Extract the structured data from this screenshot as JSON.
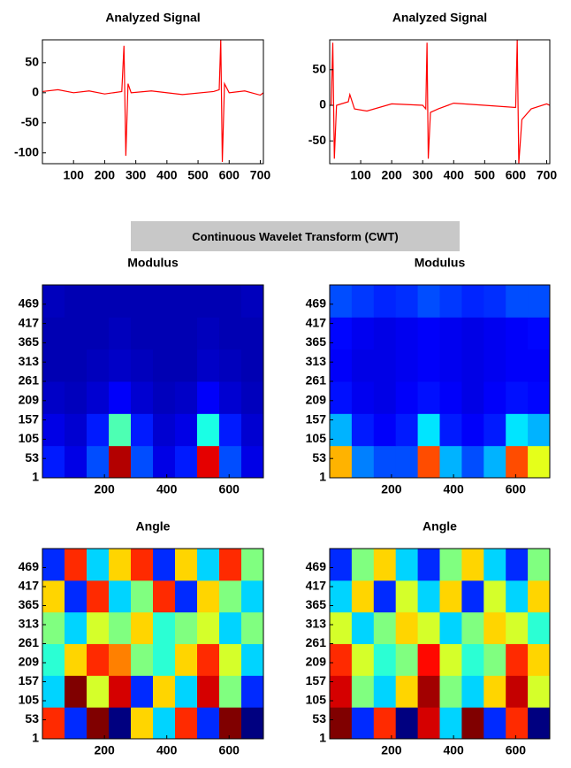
{
  "banner": "Continuous Wavelet Transform (CWT)",
  "chart_data": [
    {
      "type": "line",
      "title": "Analyzed Signal",
      "color": "#ff0000",
      "x": [
        0,
        50,
        100,
        150,
        200,
        255,
        262,
        268,
        275,
        285,
        350,
        450,
        550,
        568,
        573,
        578,
        585,
        600,
        650,
        700,
        710
      ],
      "values": [
        2,
        5,
        0,
        3,
        -2,
        2,
        78,
        -105,
        15,
        0,
        3,
        -3,
        2,
        5,
        88,
        -115,
        15,
        0,
        3,
        -4,
        0
      ],
      "xlim": [
        0,
        710
      ],
      "xticks": [
        100,
        200,
        300,
        400,
        500,
        600,
        700
      ],
      "ylim": [
        -118,
        88
      ],
      "yticks": [
        -100,
        -50,
        0,
        50
      ]
    },
    {
      "type": "line",
      "title": "Analyzed Signal",
      "color": "#ff0000",
      "x": [
        5,
        10,
        15,
        22,
        60,
        65,
        80,
        120,
        200,
        300,
        310,
        314,
        318,
        325,
        350,
        400,
        500,
        600,
        605,
        610,
        620,
        650,
        700,
        710
      ],
      "values": [
        0,
        88,
        -75,
        0,
        5,
        15,
        -5,
        -8,
        2,
        0,
        -5,
        88,
        -75,
        -10,
        -5,
        3,
        0,
        -3,
        92,
        -82,
        -20,
        -5,
        2,
        0
      ],
      "xlim": [
        0,
        710
      ],
      "xticks": [
        100,
        200,
        300,
        400,
        500,
        600,
        700
      ],
      "ylim": [
        -82,
        92
      ],
      "yticks": [
        -50,
        0,
        50
      ]
    },
    {
      "type": "heatmap",
      "title": "Modulus",
      "clim": [
        0,
        1
      ],
      "xlim": [
        1,
        710
      ],
      "xticks": [
        200,
        400,
        600
      ],
      "ylim": [
        1,
        521
      ],
      "yticks": [
        1,
        53,
        105,
        157,
        209,
        261,
        313,
        365,
        417,
        469
      ],
      "values": [
        [
          0.15,
          0.1,
          0.2,
          0.95,
          0.2,
          0.1,
          0.15,
          0.9,
          0.2,
          0.1
        ],
        [
          0.1,
          0.08,
          0.15,
          0.45,
          0.15,
          0.08,
          0.1,
          0.4,
          0.15,
          0.08
        ],
        [
          0.07,
          0.06,
          0.08,
          0.12,
          0.08,
          0.06,
          0.07,
          0.12,
          0.08,
          0.06
        ],
        [
          0.05,
          0.05,
          0.06,
          0.07,
          0.06,
          0.05,
          0.05,
          0.07,
          0.06,
          0.05
        ],
        [
          0.05,
          0.05,
          0.05,
          0.06,
          0.05,
          0.05,
          0.05,
          0.06,
          0.05,
          0.05
        ],
        [
          0.06,
          0.05,
          0.05,
          0.05,
          0.05,
          0.05,
          0.05,
          0.05,
          0.05,
          0.06
        ]
      ]
    },
    {
      "type": "heatmap",
      "title": "Modulus",
      "clim": [
        0,
        1
      ],
      "xlim": [
        1,
        710
      ],
      "xticks": [
        200,
        400,
        600
      ],
      "ylim": [
        1,
        521
      ],
      "yticks": [
        1,
        53,
        105,
        157,
        209,
        261,
        313,
        365,
        417,
        469
      ],
      "values": [
        [
          0.7,
          0.25,
          0.2,
          0.2,
          0.8,
          0.3,
          0.2,
          0.3,
          0.8,
          0.6
        ],
        [
          0.3,
          0.15,
          0.12,
          0.15,
          0.35,
          0.15,
          0.12,
          0.15,
          0.35,
          0.3
        ],
        [
          0.14,
          0.11,
          0.1,
          0.12,
          0.14,
          0.12,
          0.1,
          0.12,
          0.14,
          0.13
        ],
        [
          0.12,
          0.1,
          0.1,
          0.11,
          0.12,
          0.11,
          0.1,
          0.11,
          0.12,
          0.12
        ],
        [
          0.13,
          0.11,
          0.1,
          0.11,
          0.12,
          0.11,
          0.1,
          0.11,
          0.12,
          0.13
        ],
        [
          0.2,
          0.18,
          0.16,
          0.17,
          0.2,
          0.18,
          0.16,
          0.17,
          0.2,
          0.2
        ]
      ]
    },
    {
      "type": "heatmap",
      "title": "Angle",
      "clim": [
        -3,
        3
      ],
      "xlim": [
        1,
        710
      ],
      "xticks": [
        200,
        400,
        600
      ],
      "ylim": [
        1,
        521
      ],
      "yticks": [
        1,
        53,
        105,
        157,
        209,
        261,
        313,
        365,
        417,
        469
      ],
      "values": [
        [
          2,
          -2,
          3,
          -3,
          1,
          -1,
          2,
          -2,
          3,
          -3
        ],
        [
          -1,
          3,
          0.5,
          2.5,
          -2,
          1,
          -1,
          2.5,
          0,
          -2
        ],
        [
          -0.5,
          1,
          2,
          1.5,
          0,
          -0.5,
          1,
          2,
          0.5,
          -1
        ],
        [
          0,
          -1,
          0.5,
          0,
          1,
          -0.5,
          0,
          0.5,
          -1,
          0
        ],
        [
          1,
          -2,
          2,
          -1,
          0,
          2,
          -2,
          1,
          0,
          -1
        ],
        [
          -2,
          2,
          -1,
          1,
          2,
          -2,
          1,
          -1,
          2,
          0
        ]
      ]
    },
    {
      "type": "heatmap",
      "title": "Angle",
      "clim": [
        -3,
        3
      ],
      "xlim": [
        1,
        710
      ],
      "xticks": [
        200,
        400,
        600
      ],
      "ylim": [
        1,
        521
      ],
      "yticks": [
        1,
        53,
        105,
        157,
        209,
        261,
        313,
        365,
        417,
        469
      ],
      "values": [
        [
          3,
          -2,
          2,
          -3,
          2.5,
          -1,
          3,
          -2,
          2,
          -3
        ],
        [
          2.5,
          0,
          -1,
          1,
          2.8,
          0,
          -1,
          1,
          2.6,
          0.5
        ],
        [
          2,
          0.5,
          -0.5,
          0,
          2.2,
          0.5,
          -0.5,
          0,
          2,
          1
        ],
        [
          0.5,
          -1,
          0,
          1,
          0.5,
          -1,
          0,
          1,
          0.5,
          -0.5
        ],
        [
          -1,
          1,
          -2,
          0.5,
          -1,
          1,
          -2,
          0.5,
          -1,
          1
        ],
        [
          -2,
          0,
          1,
          -1,
          -2,
          0,
          1,
          -1,
          -2,
          0
        ]
      ]
    }
  ]
}
